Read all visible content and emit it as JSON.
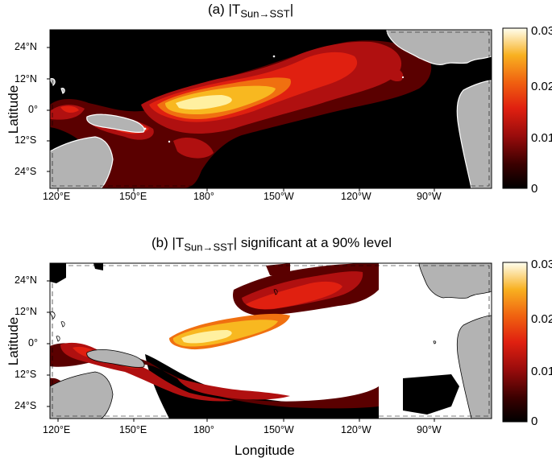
{
  "panel_a": {
    "title_prefix": "(a) |T",
    "title_sub": "Sun→SST",
    "title_suffix": "|",
    "ylabel": "Latitude",
    "lat_ticks": [
      "24°N",
      "12°N",
      "0°",
      "12°S",
      "24°S"
    ],
    "lon_ticks": [
      "120°E",
      "150°E",
      "180°",
      "150°W",
      "120°W",
      "90°W"
    ],
    "colorbar_ticks": [
      "0.03",
      "0.02",
      "0.01",
      "0"
    ]
  },
  "panel_b": {
    "title_prefix": "(b) |T",
    "title_sub": "Sun→SST",
    "title_suffix": "| significant at a 90% level",
    "ylabel": "Latitude",
    "xlabel": "Longitude",
    "lat_ticks": [
      "24°N",
      "12°N",
      "0°",
      "12°S",
      "24°S"
    ],
    "lon_ticks": [
      "120°E",
      "150°E",
      "180°",
      "150°W",
      "120°W",
      "90°W"
    ],
    "colorbar_ticks": [
      "0.03",
      "0.02",
      "0.01",
      "0"
    ]
  },
  "colors": {
    "land": "#b3b3b3",
    "zero": "#000000",
    "low": "#5a0000",
    "mid": "#b01010",
    "midhigh": "#e02010",
    "high": "#f07010",
    "veryhigh": "#f8b820",
    "max": "#fff0a0"
  }
}
